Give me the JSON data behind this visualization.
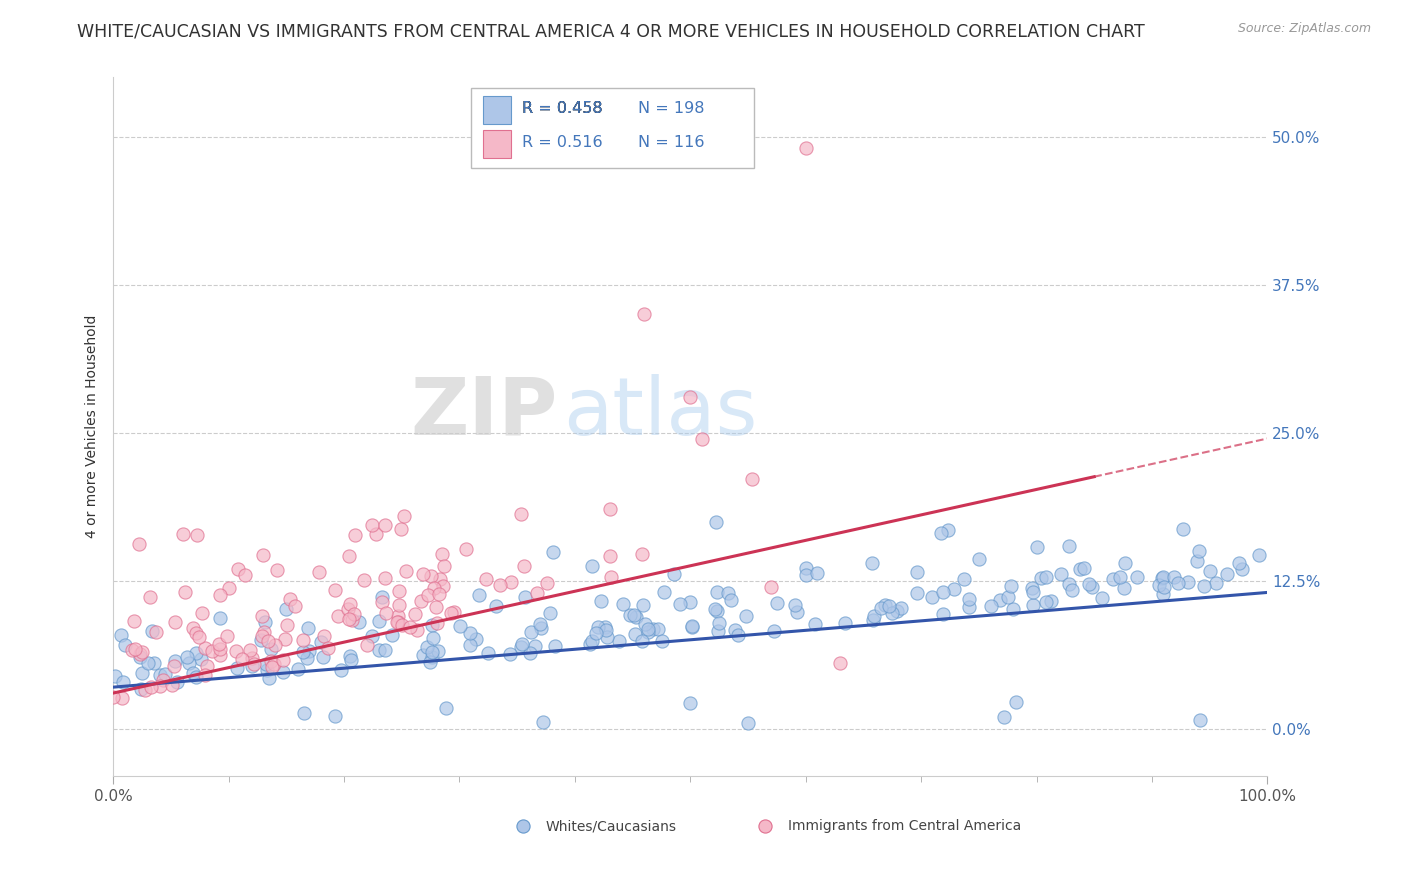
{
  "title": "WHITE/CAUCASIAN VS IMMIGRANTS FROM CENTRAL AMERICA 4 OR MORE VEHICLES IN HOUSEHOLD CORRELATION CHART",
  "source": "Source: ZipAtlas.com",
  "ylabel": "4 or more Vehicles in Household",
  "legend_label1": "Whites/Caucasians",
  "legend_label2": "Immigrants from Central America",
  "R1": 0.458,
  "N1": 198,
  "R2": 0.516,
  "N2": 116,
  "color1_face": "#aec6e8",
  "color1_edge": "#6699cc",
  "color2_face": "#f5b8c8",
  "color2_edge": "#e07090",
  "trend1_color": "#3355aa",
  "trend2_color": "#cc3355",
  "watermark_zip": "ZIP",
  "watermark_atlas": "atlas",
  "xlim": [
    0.0,
    1.0
  ],
  "ylim": [
    -0.04,
    0.55
  ],
  "yticks": [
    0.0,
    0.125,
    0.25,
    0.375,
    0.5
  ],
  "ytick_labels": [
    "0.0%",
    "12.5%",
    "25.0%",
    "37.5%",
    "50.0%"
  ],
  "xtick_labels": [
    "0.0%",
    "100.0%"
  ],
  "title_fontsize": 12.5,
  "source_fontsize": 9,
  "axis_label_fontsize": 10,
  "tick_fontsize": 11,
  "tick_color": "#4477bb"
}
